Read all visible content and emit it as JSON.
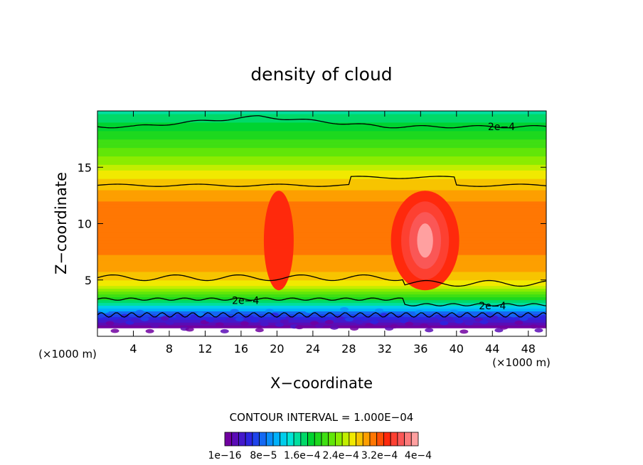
{
  "chart_data": {
    "type": "heatmap",
    "title": "density of cloud",
    "xlabel": "X−coordinate",
    "ylabel": "Z−coordinate",
    "x_unit_left": "(×1000 m)",
    "x_unit_right": "(×1000 m)",
    "xlim": [
      0,
      50
    ],
    "ylim": [
      0,
      20
    ],
    "x_ticks": [
      4,
      8,
      12,
      16,
      20,
      24,
      28,
      32,
      36,
      40,
      44,
      48
    ],
    "y_ticks": [
      5,
      10,
      15
    ],
    "contour_interval_text": "CONTOUR INTERVAL = 1.000E−04",
    "contour_levels": [
      0.0002
    ],
    "contour_labels": [
      {
        "text": "2e−4",
        "x": 45,
        "y": 18.6
      },
      {
        "text": "2e−4",
        "x": 16.5,
        "y": 3.2
      },
      {
        "text": "2e−4",
        "x": 44,
        "y": 2.7
      }
    ],
    "colorbar": {
      "min": 1e-16,
      "max": 0.0004,
      "n_colors": 28,
      "tick_labels": [
        "1e−16",
        "8e−5",
        "1.6e−4",
        "2.4e−4",
        "3.2e−4",
        "4e−4"
      ],
      "tick_labels_printed": [
        "1e−16",
        "8e−5",
        "1.6e−4",
        "2.4e−4",
        "3.2e−4",
        "4e−4"
      ]
    },
    "vertical_profile": [
      {
        "z": 0.6,
        "value": 0.0
      },
      {
        "z": 1.5,
        "value": 4e-05
      },
      {
        "z": 2.5,
        "value": 0.00011
      },
      {
        "z": 3.5,
        "value": 0.0002
      },
      {
        "z": 4.5,
        "value": 0.00026
      },
      {
        "z": 6,
        "value": 0.00029
      },
      {
        "z": 8,
        "value": 0.000305
      },
      {
        "z": 10,
        "value": 0.00031
      },
      {
        "z": 12,
        "value": 0.0003
      },
      {
        "z": 13.5,
        "value": 0.00028
      },
      {
        "z": 15,
        "value": 0.00025
      },
      {
        "z": 17,
        "value": 0.00021
      },
      {
        "z": 19,
        "value": 0.00017
      },
      {
        "z": 20,
        "value": 0.00015
      }
    ],
    "maxima": [
      {
        "x": 36.5,
        "z": 8.5,
        "value": 0.00039
      },
      {
        "x": 20.2,
        "z": 8.5,
        "value": 0.00034
      }
    ]
  }
}
